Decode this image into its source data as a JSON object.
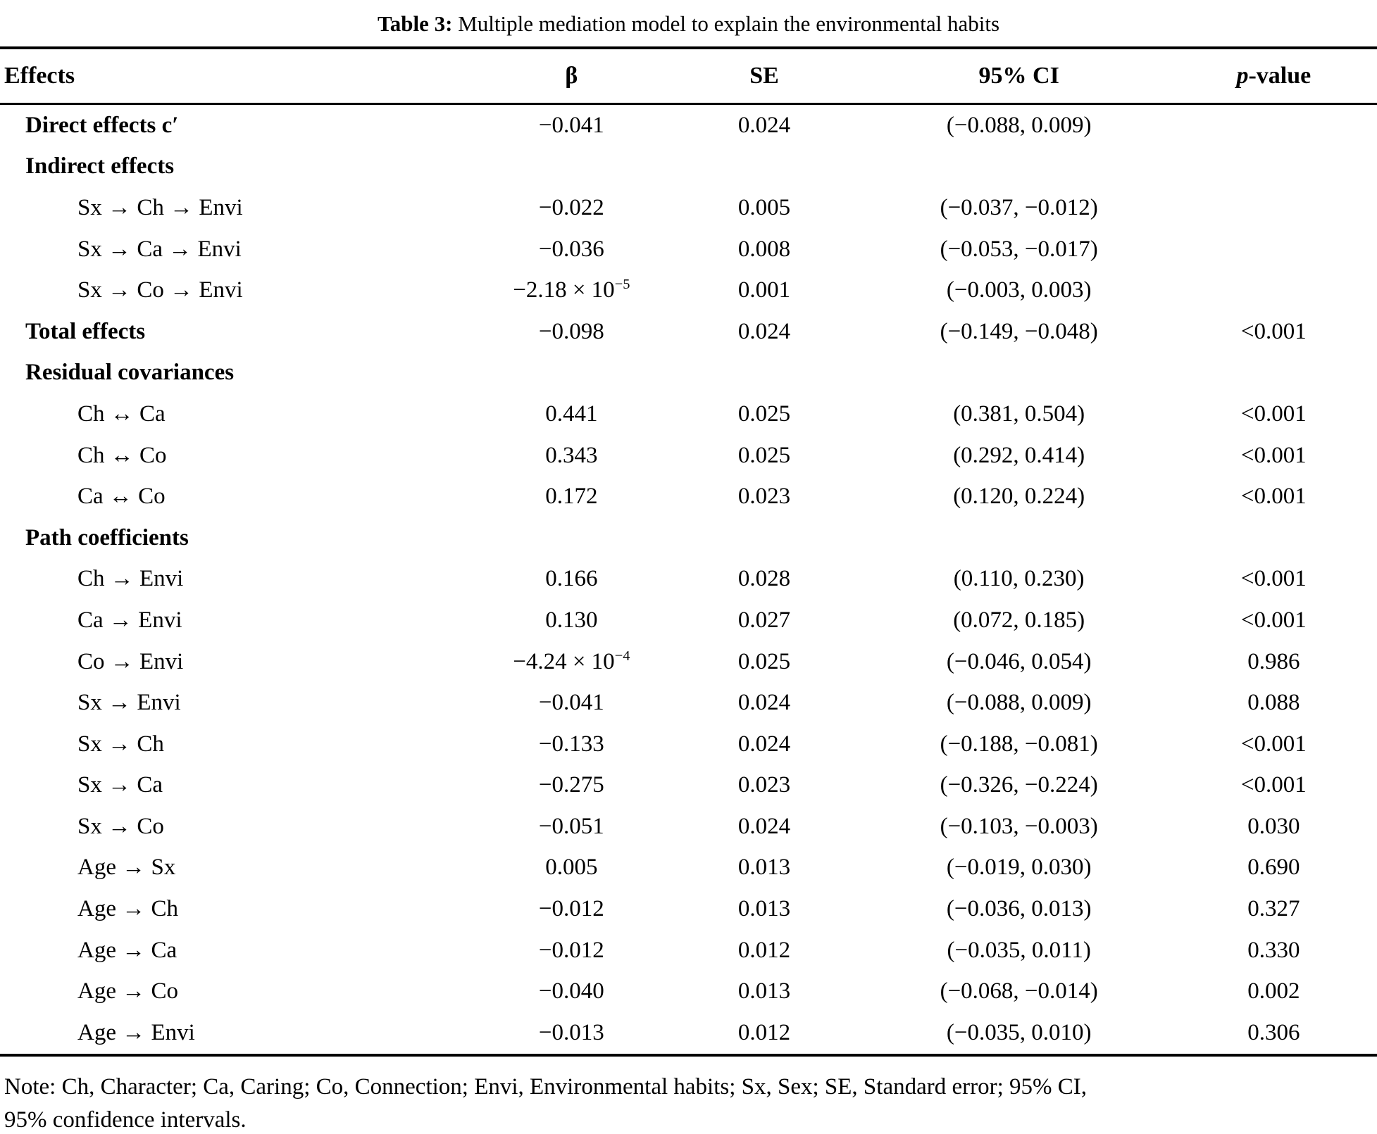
{
  "title": {
    "prefix": "Table 3:",
    "rest": " Multiple mediation model to explain the environmental habits"
  },
  "columns": {
    "effects": "Effects",
    "beta": "β",
    "se": "SE",
    "ci": "95% CI",
    "p_italic": "p",
    "p_rest": "-value"
  },
  "rows": [
    {
      "label": "Direct effects c′",
      "style": "section",
      "beta": "−0.041",
      "se": "0.024",
      "ci": "(−0.088, 0.009)",
      "p": ""
    },
    {
      "label": "Indirect effects",
      "style": "section",
      "beta": "",
      "se": "",
      "ci": "",
      "p": ""
    },
    {
      "label": "Sx → Ch → Envi",
      "style": "sub",
      "beta": "−0.022",
      "se": "0.005",
      "ci": "(−0.037, −0.012)",
      "p": ""
    },
    {
      "label": "Sx → Ca → Envi",
      "style": "sub",
      "beta": "−0.036",
      "se": "0.008",
      "ci": "(−0.053, −0.017)",
      "p": ""
    },
    {
      "label": "Sx → Co → Envi",
      "style": "sub",
      "beta": "−2.18 × 10^{−5}",
      "se": "0.001",
      "ci": "(−0.003, 0.003)",
      "p": ""
    },
    {
      "label": "Total effects",
      "style": "section",
      "beta": "−0.098",
      "se": "0.024",
      "ci": "(−0.149, −0.048)",
      "p": "<0.001"
    },
    {
      "label": "Residual covariances",
      "style": "section",
      "beta": "",
      "se": "",
      "ci": "",
      "p": ""
    },
    {
      "label": "Ch ↔ Ca",
      "style": "sub",
      "beta": "0.441",
      "se": "0.025",
      "ci": "(0.381, 0.504)",
      "p": "<0.001"
    },
    {
      "label": "Ch ↔ Co",
      "style": "sub",
      "beta": "0.343",
      "se": "0.025",
      "ci": "(0.292, 0.414)",
      "p": "<0.001"
    },
    {
      "label": "Ca ↔ Co",
      "style": "sub",
      "beta": "0.172",
      "se": "0.023",
      "ci": "(0.120, 0.224)",
      "p": "<0.001"
    },
    {
      "label": "Path coefficients",
      "style": "section",
      "beta": "",
      "se": "",
      "ci": "",
      "p": ""
    },
    {
      "label": "Ch → Envi",
      "style": "sub",
      "beta": "0.166",
      "se": "0.028",
      "ci": "(0.110, 0.230)",
      "p": "<0.001"
    },
    {
      "label": "Ca → Envi",
      "style": "sub",
      "beta": "0.130",
      "se": "0.027",
      "ci": "(0.072, 0.185)",
      "p": "<0.001"
    },
    {
      "label": "Co → Envi",
      "style": "sub",
      "beta": "−4.24 × 10^{−4}",
      "se": "0.025",
      "ci": "(−0.046, 0.054)",
      "p": "0.986"
    },
    {
      "label": "Sx → Envi",
      "style": "sub",
      "beta": "−0.041",
      "se": "0.024",
      "ci": "(−0.088, 0.009)",
      "p": "0.088"
    },
    {
      "label": "Sx → Ch",
      "style": "sub",
      "beta": "−0.133",
      "se": "0.024",
      "ci": "(−0.188, −0.081)",
      "p": "<0.001"
    },
    {
      "label": "Sx → Ca",
      "style": "sub",
      "beta": "−0.275",
      "se": "0.023",
      "ci": "(−0.326, −0.224)",
      "p": "<0.001"
    },
    {
      "label": "Sx → Co",
      "style": "sub",
      "beta": "−0.051",
      "se": "0.024",
      "ci": "(−0.103, −0.003)",
      "p": "0.030"
    },
    {
      "label": "Age → Sx",
      "style": "sub",
      "beta": "0.005",
      "se": "0.013",
      "ci": "(−0.019, 0.030)",
      "p": "0.690"
    },
    {
      "label": "Age → Ch",
      "style": "sub",
      "beta": "−0.012",
      "se": "0.013",
      "ci": "(−0.036, 0.013)",
      "p": "0.327"
    },
    {
      "label": "Age → Ca",
      "style": "sub",
      "beta": "−0.012",
      "se": "0.012",
      "ci": "(−0.035, 0.011)",
      "p": "0.330"
    },
    {
      "label": "Age → Co",
      "style": "sub",
      "beta": "−0.040",
      "se": "0.013",
      "ci": "(−0.068, −0.014)",
      "p": "0.002"
    },
    {
      "label": "Age → Envi",
      "style": "sub",
      "beta": "−0.013",
      "se": "0.012",
      "ci": "(−0.035, 0.010)",
      "p": "0.306"
    }
  ],
  "note_lines": [
    "Note: Ch, Character; Ca, Caring; Co, Connection; Envi, Environmental habits; Sx, Sex; SE, Standard error; 95% CI,",
    "95% confidence intervals."
  ],
  "colors": {
    "background": "#ffffff",
    "text": "#000000",
    "rule": "#000000"
  }
}
